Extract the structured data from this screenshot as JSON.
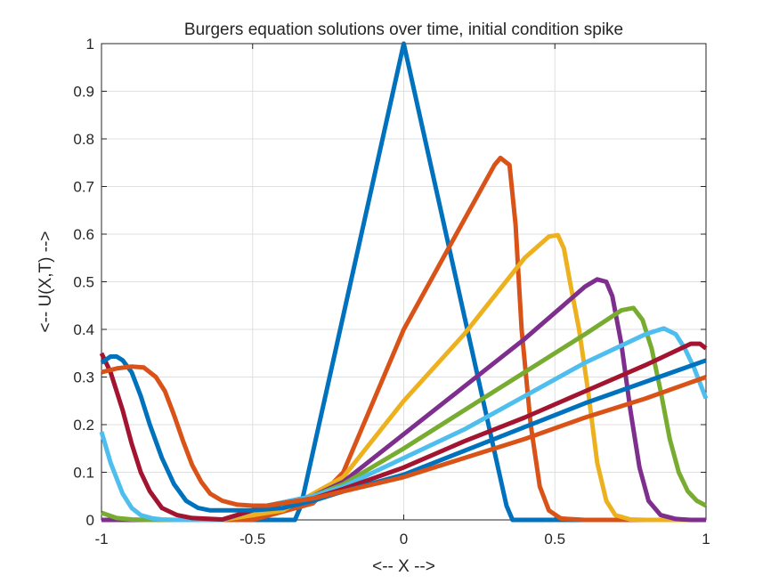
{
  "chart_data": {
    "type": "line",
    "title": "Burgers equation solutions over time, initial condition spike",
    "xlabel": "<-- X -->",
    "ylabel": "<-- U(X,T) -->",
    "xlim": [
      -1,
      1
    ],
    "ylim": [
      0,
      1
    ],
    "xticks": [
      "-1",
      "-0.5",
      "0",
      "0.5",
      "1"
    ],
    "yticks": [
      "0",
      "0.1",
      "0.2",
      "0.3",
      "0.4",
      "0.5",
      "0.6",
      "0.7",
      "0.8",
      "0.9",
      "1"
    ],
    "grid": true,
    "series": [
      {
        "color": "#0072BD",
        "x": [
          -1,
          -0.4,
          -0.36,
          -0.34,
          0,
          0.34,
          0.36,
          0.4,
          1
        ],
        "y": [
          0,
          0,
          0,
          0.03,
          1,
          0.03,
          0,
          0,
          0
        ]
      },
      {
        "color": "#D95319",
        "x": [
          -1,
          -0.5,
          -0.3,
          -0.2,
          0,
          0.2,
          0.3,
          0.32,
          0.35,
          0.37,
          0.39,
          0.42,
          0.45,
          0.48,
          0.52,
          0.6,
          1
        ],
        "y": [
          0,
          0,
          0.035,
          0.1,
          0.4,
          0.63,
          0.745,
          0.76,
          0.745,
          0.62,
          0.4,
          0.2,
          0.07,
          0.02,
          0.003,
          0,
          0
        ]
      },
      {
        "color": "#EDB120",
        "x": [
          -1,
          -0.6,
          -0.4,
          -0.2,
          0,
          0.2,
          0.4,
          0.48,
          0.51,
          0.53,
          0.55,
          0.58,
          0.61,
          0.64,
          0.67,
          0.7,
          0.75,
          0.8,
          1
        ],
        "y": [
          0,
          0,
          0.02,
          0.09,
          0.25,
          0.39,
          0.55,
          0.595,
          0.598,
          0.57,
          0.5,
          0.4,
          0.27,
          0.12,
          0.04,
          0.01,
          0.001,
          0,
          0
        ]
      },
      {
        "color": "#7E2F8E",
        "x": [
          -1,
          -0.6,
          -0.45,
          -0.3,
          -0.2,
          0,
          0.2,
          0.4,
          0.6,
          0.64,
          0.67,
          0.69,
          0.72,
          0.75,
          0.78,
          0.81,
          0.85,
          0.9,
          0.95,
          1
        ],
        "y": [
          0,
          0,
          0.03,
          0.05,
          0.08,
          0.18,
          0.28,
          0.38,
          0.49,
          0.505,
          0.5,
          0.47,
          0.37,
          0.23,
          0.11,
          0.04,
          0.01,
          0.002,
          0,
          0
        ]
      },
      {
        "color": "#77AC30",
        "x": [
          -1,
          -0.95,
          -0.9,
          -0.85,
          -0.8,
          -0.6,
          -0.45,
          -0.3,
          -0.2,
          0,
          0.2,
          0.4,
          0.6,
          0.72,
          0.76,
          0.79,
          0.82,
          0.85,
          0.88,
          0.91,
          0.94,
          0.97,
          1
        ],
        "y": [
          0.015,
          0.004,
          0.001,
          0,
          0,
          0,
          0.03,
          0.05,
          0.075,
          0.15,
          0.23,
          0.31,
          0.39,
          0.44,
          0.445,
          0.42,
          0.36,
          0.27,
          0.17,
          0.1,
          0.06,
          0.04,
          0.03
        ]
      },
      {
        "color": "#4DBEEE",
        "x": [
          -1,
          -0.97,
          -0.93,
          -0.9,
          -0.87,
          -0.83,
          -0.8,
          -0.75,
          -0.6,
          -0.45,
          -0.3,
          -0.2,
          0,
          0.2,
          0.4,
          0.6,
          0.8,
          0.86,
          0.9,
          0.93,
          0.96,
          1
        ],
        "y": [
          0.185,
          0.12,
          0.055,
          0.025,
          0.01,
          0.003,
          0.001,
          0,
          0,
          0.03,
          0.05,
          0.07,
          0.13,
          0.19,
          0.26,
          0.33,
          0.39,
          0.402,
          0.39,
          0.36,
          0.32,
          0.255
        ]
      },
      {
        "color": "#A2142F",
        "x": [
          -1,
          -0.97,
          -0.93,
          -0.9,
          -0.87,
          -0.84,
          -0.8,
          -0.75,
          -0.7,
          -0.6,
          -0.45,
          -0.3,
          -0.2,
          0,
          0.2,
          0.4,
          0.6,
          0.8,
          0.95,
          0.98,
          1
        ],
        "y": [
          0.35,
          0.31,
          0.23,
          0.16,
          0.1,
          0.06,
          0.025,
          0.01,
          0.004,
          0.001,
          0.03,
          0.045,
          0.065,
          0.11,
          0.165,
          0.215,
          0.27,
          0.325,
          0.37,
          0.37,
          0.36
        ]
      },
      {
        "color": "#0072BD",
        "x": [
          -1,
          -0.97,
          -0.95,
          -0.93,
          -0.9,
          -0.87,
          -0.84,
          -0.8,
          -0.76,
          -0.72,
          -0.68,
          -0.64,
          -0.6,
          -0.5,
          -0.4,
          -0.3,
          -0.2,
          0,
          0.2,
          0.4,
          0.6,
          0.8,
          1
        ],
        "y": [
          0.33,
          0.343,
          0.343,
          0.335,
          0.31,
          0.26,
          0.2,
          0.13,
          0.075,
          0.04,
          0.025,
          0.02,
          0.02,
          0.02,
          0.025,
          0.04,
          0.06,
          0.095,
          0.145,
          0.195,
          0.245,
          0.29,
          0.335
        ]
      },
      {
        "color": "#D95319",
        "x": [
          -1,
          -0.95,
          -0.9,
          -0.86,
          -0.82,
          -0.79,
          -0.76,
          -0.73,
          -0.7,
          -0.67,
          -0.64,
          -0.6,
          -0.55,
          -0.5,
          -0.45,
          -0.4,
          -0.3,
          -0.2,
          0,
          0.2,
          0.4,
          0.6,
          0.8,
          1
        ],
        "y": [
          0.31,
          0.318,
          0.322,
          0.32,
          0.3,
          0.27,
          0.22,
          0.165,
          0.115,
          0.08,
          0.055,
          0.04,
          0.032,
          0.03,
          0.03,
          0.035,
          0.045,
          0.06,
          0.09,
          0.13,
          0.17,
          0.215,
          0.255,
          0.3
        ]
      }
    ]
  }
}
